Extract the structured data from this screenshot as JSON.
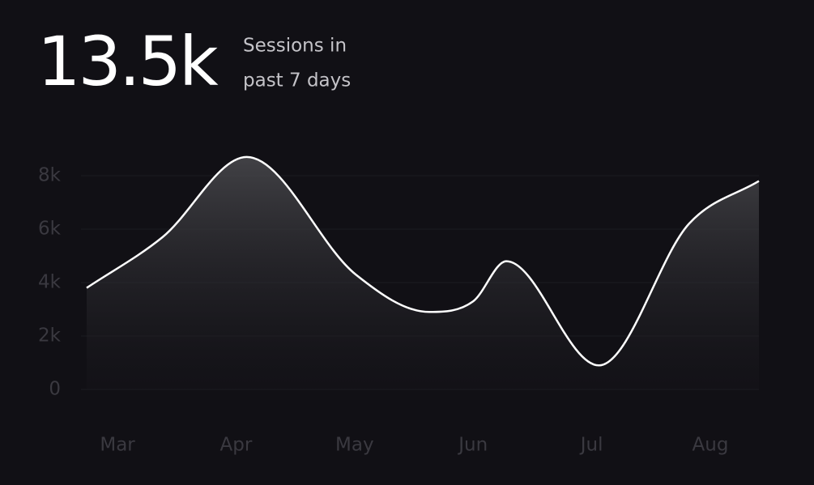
{
  "kpi_value": "13.5k",
  "kpi_label_lines": [
    "Sessions in",
    "past 7 days"
  ],
  "chart_data": {
    "type": "area",
    "x": [
      -0.26,
      0.38,
      1.09,
      2.01,
      2.63,
      3.0,
      3.28,
      4.06,
      4.82,
      5.41
    ],
    "values": [
      3800,
      5700,
      8700,
      4300,
      2900,
      3300,
      4800,
      900,
      6200,
      7800
    ],
    "color": "#ffffff",
    "xlim": [
      -0.26,
      5.41
    ],
    "xticks": [
      {
        "value": 0,
        "label": "Mar"
      },
      {
        "value": 1,
        "label": "Apr"
      },
      {
        "value": 2,
        "label": "May"
      },
      {
        "value": 3,
        "label": "Jun"
      },
      {
        "value": 4,
        "label": "Jul"
      },
      {
        "value": 5,
        "label": "Aug"
      }
    ],
    "ylim": [
      0,
      8000
    ],
    "yticks": [
      0,
      {
        "value": 2000,
        "label": "2k"
      },
      {
        "value": 4000,
        "label": "4k"
      },
      {
        "value": 6000,
        "label": "6k"
      },
      {
        "value": 8000,
        "label": "8k"
      }
    ],
    "grid": true
  }
}
